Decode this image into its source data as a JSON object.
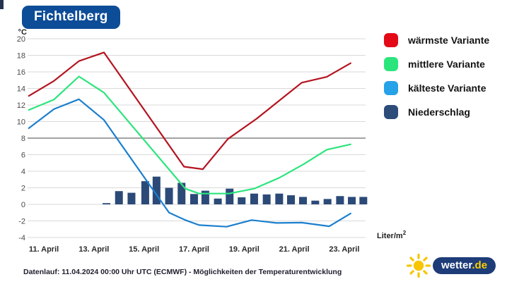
{
  "title": "Fichtelberg",
  "legend": {
    "items": [
      {
        "label": "wärmste Variante",
        "color": "#e30917"
      },
      {
        "label": "mittlere Variante",
        "color": "#2be57c"
      },
      {
        "label": "kälteste Variante",
        "color": "#25a2e8"
      },
      {
        "label": "Niederschlag",
        "color": "#2d4c7a"
      }
    ]
  },
  "footer": {
    "note": "Datenlauf: 11.04.2024 00:00 Uhr UTC (ECMWF) - Möglichkeiten der Temperaturentwicklung"
  },
  "brand": {
    "name": "wetter",
    "tld": ".de",
    "pill_color": "#1d3c78",
    "sun_color": "#f7c600",
    "sun_icon": "sun-icon"
  },
  "chart_data": {
    "type": "composite",
    "title": "Fichtelberg",
    "unit_left": "°C",
    "unit_right": {
      "text": "Liter/m",
      "sup": "2"
    },
    "x_range": [
      10.35,
      23.85
    ],
    "y_range": [
      -4,
      20
    ],
    "grid": true,
    "bold_gridline_y": 8,
    "y_ticks": [
      20,
      18,
      16,
      14,
      12,
      10,
      8,
      6,
      4,
      2,
      0,
      -2,
      -4
    ],
    "x_ticks": [
      {
        "x": 11,
        "label": "11. April"
      },
      {
        "x": 13,
        "label": "13. April"
      },
      {
        "x": 15,
        "label": "15. April"
      },
      {
        "x": 17,
        "label": "17. April"
      },
      {
        "x": 19,
        "label": "19. April"
      },
      {
        "x": 21,
        "label": "21. April"
      },
      {
        "x": 23,
        "label": "23. April"
      }
    ],
    "series": [
      {
        "name": "wärmste Variante",
        "type": "line",
        "color": "#b41420",
        "unit": "°C",
        "points": [
          [
            10.4,
            13.1
          ],
          [
            11.4,
            14.9
          ],
          [
            12.4,
            17.3
          ],
          [
            13.4,
            18.35
          ],
          [
            16.6,
            4.55
          ],
          [
            17.35,
            4.25
          ],
          [
            18.35,
            7.9
          ],
          [
            19.5,
            10.35
          ],
          [
            21.3,
            14.7
          ],
          [
            22.3,
            15.4
          ],
          [
            23.25,
            17.05
          ]
        ]
      },
      {
        "name": "mittlere Variante",
        "type": "line",
        "color": "#2be57c",
        "unit": "°C",
        "points": [
          [
            10.4,
            11.4
          ],
          [
            11.4,
            12.65
          ],
          [
            12.4,
            15.45
          ],
          [
            13.4,
            13.5
          ],
          [
            16.65,
            1.9
          ],
          [
            17.2,
            1.3
          ],
          [
            18.4,
            1.3
          ],
          [
            19.4,
            1.9
          ],
          [
            20.4,
            3.2
          ],
          [
            21.4,
            4.9
          ],
          [
            22.3,
            6.6
          ],
          [
            23.25,
            7.25
          ]
        ]
      },
      {
        "name": "kälteste Variante",
        "type": "line",
        "color": "#1b7fce",
        "unit": "°C",
        "points": [
          [
            10.4,
            9.2
          ],
          [
            11.4,
            11.5
          ],
          [
            12.4,
            12.7
          ],
          [
            13.4,
            10.2
          ],
          [
            16.0,
            -1.0
          ],
          [
            16.65,
            -1.9
          ],
          [
            17.2,
            -2.5
          ],
          [
            18.3,
            -2.7
          ],
          [
            19.3,
            -1.9
          ],
          [
            20.3,
            -2.25
          ],
          [
            21.3,
            -2.2
          ],
          [
            22.4,
            -2.65
          ],
          [
            23.25,
            -1.1
          ]
        ]
      },
      {
        "name": "Niederschlag",
        "type": "bar",
        "color": "#2b4a78",
        "unit": "Liter/m2",
        "points": [
          [
            13.5,
            0.15
          ],
          [
            14.0,
            1.6
          ],
          [
            14.5,
            1.4
          ],
          [
            15.05,
            2.8
          ],
          [
            15.5,
            3.35
          ],
          [
            16.0,
            2.0
          ],
          [
            16.5,
            2.6
          ],
          [
            17.0,
            1.25
          ],
          [
            17.45,
            1.65
          ],
          [
            17.95,
            0.7
          ],
          [
            18.42,
            1.9
          ],
          [
            18.9,
            0.85
          ],
          [
            19.4,
            1.3
          ],
          [
            19.9,
            1.2
          ],
          [
            20.4,
            1.3
          ],
          [
            20.87,
            1.1
          ],
          [
            21.35,
            0.9
          ],
          [
            21.84,
            0.45
          ],
          [
            22.33,
            0.65
          ],
          [
            22.83,
            1.0
          ],
          [
            23.3,
            0.9
          ],
          [
            23.76,
            0.9
          ]
        ]
      }
    ]
  }
}
